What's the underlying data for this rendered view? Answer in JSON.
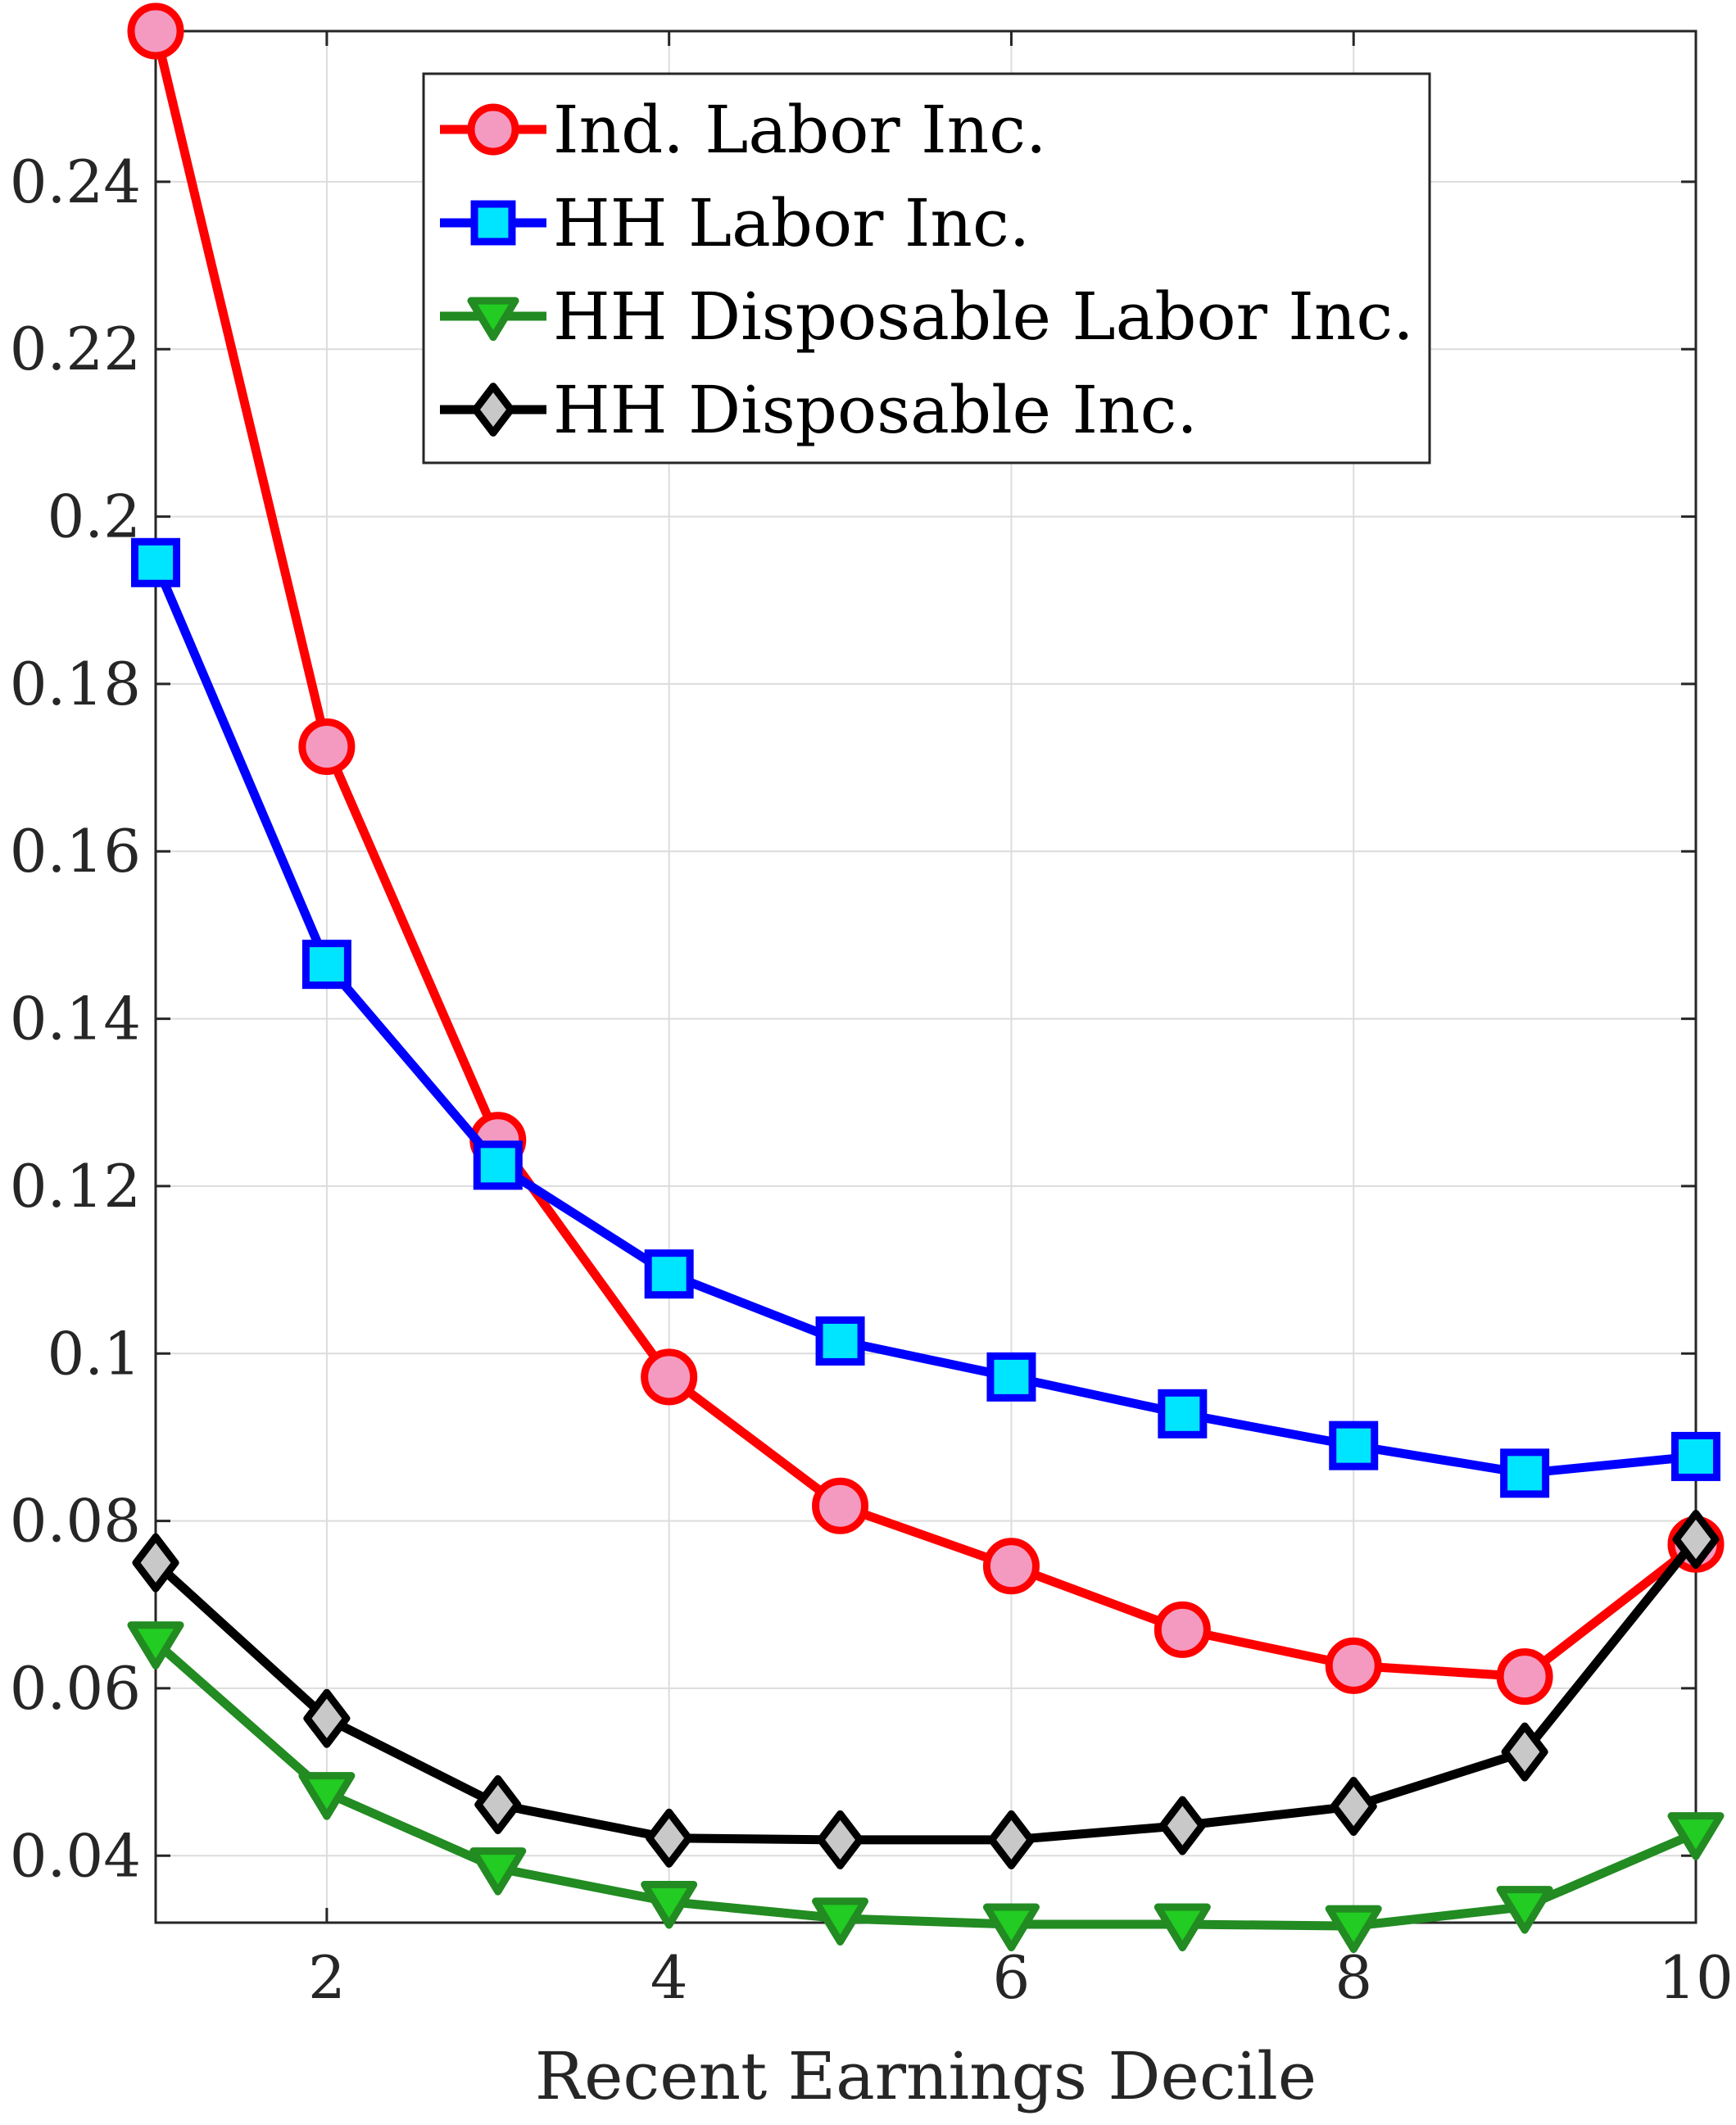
{
  "chart_data": {
    "type": "line",
    "title": "",
    "xlabel": "Recent Earnings Decile",
    "ylabel": "",
    "x": [
      1,
      2,
      3,
      4,
      5,
      6,
      7,
      8,
      9,
      10
    ],
    "xlim": [
      1,
      10
    ],
    "ylim": [
      0.032,
      0.258
    ],
    "xticks": [
      2,
      4,
      6,
      8,
      10
    ],
    "xtick_labels": [
      "2",
      "4",
      "6",
      "8",
      "10"
    ],
    "yticks": [
      0.04,
      0.06,
      0.08,
      0.1,
      0.12,
      0.14,
      0.16,
      0.18,
      0.2,
      0.22,
      0.24
    ],
    "ytick_labels": [
      "0.04",
      "0.06",
      "0.08",
      "0.1",
      "0.12",
      "0.14",
      "0.16",
      "0.18",
      "0.2",
      "0.22",
      "0.24"
    ],
    "grid": true,
    "legend_position": "top-right",
    "series": [
      {
        "name": "Ind. Labor Inc.",
        "color": "#ff0000",
        "marker": "circle",
        "marker_fill": "#f49ac1",
        "values": [
          0.258,
          0.1725,
          0.1255,
          0.0972,
          0.0818,
          0.0746,
          0.067,
          0.0627,
          0.0614,
          0.0772
        ]
      },
      {
        "name": "HH Labor Inc.",
        "color": "#0000ff",
        "marker": "square",
        "marker_fill": "#00e5ff",
        "values": [
          0.1945,
          0.1465,
          0.1225,
          0.1095,
          0.1015,
          0.0972,
          0.0928,
          0.089,
          0.0857,
          0.0877
        ]
      },
      {
        "name": "HH Disposable Labor Inc.",
        "color": "#228b22",
        "marker": "triangle-down",
        "marker_fill": "#22cc22",
        "values": [
          0.0655,
          0.0475,
          0.0385,
          0.0345,
          0.0325,
          0.0318,
          0.0318,
          0.0316,
          0.0339,
          0.0427
        ]
      },
      {
        "name": "HH Disposable Inc.",
        "color": "#000000",
        "marker": "diamond",
        "marker_fill": "#c8c8c8",
        "values": [
          0.075,
          0.0564,
          0.0461,
          0.0421,
          0.0419,
          0.0419,
          0.0436,
          0.0459,
          0.0524,
          0.0778
        ]
      }
    ]
  }
}
